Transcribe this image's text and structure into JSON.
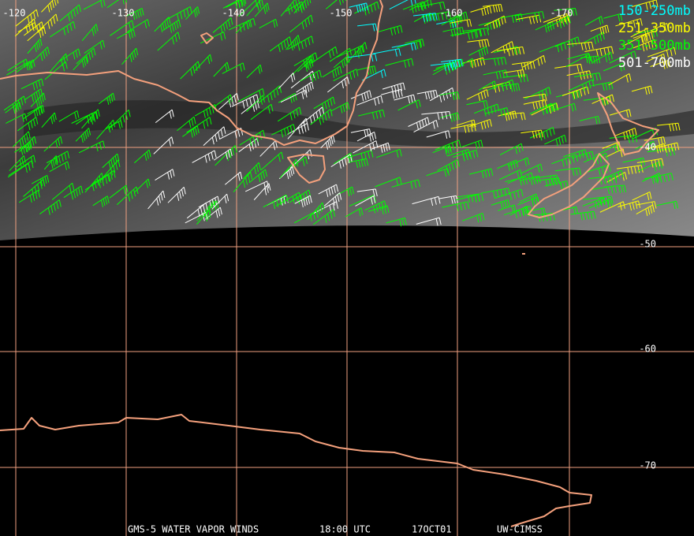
{
  "longitude_labels": [
    "-120",
    "-130",
    "-140",
    "-150",
    "-160",
    "-170"
  ],
  "latitude_labels": [
    "-40",
    "-50",
    "-60",
    "-70"
  ],
  "legend": [
    {
      "label": "150-250mb",
      "color": "#00ffff"
    },
    {
      "label": "251-350mb",
      "color": "#ffff00"
    },
    {
      "label": "351-500mb",
      "color": "#00ff00"
    },
    {
      "label": "501-700mb",
      "color": "#ffffff"
    }
  ],
  "footer": {
    "product": "GMS-5 WATER VAPOR WINDS",
    "time": "18:00 UTC",
    "date": "17OCT01",
    "source": "UW-CIMSS"
  }
}
